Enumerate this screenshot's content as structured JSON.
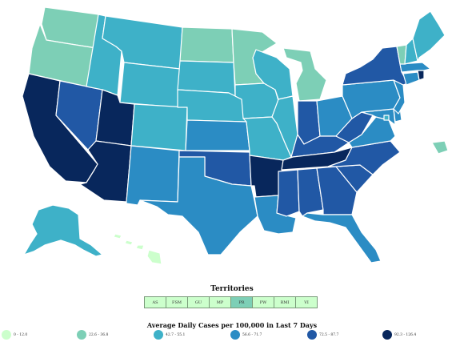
{
  "bins": [
    {
      "id": "b1",
      "label": "0 - 12.0",
      "color": "#ccffcc"
    },
    {
      "id": "b2",
      "label": "22.6 - 36.8",
      "color": "#7dcfb6"
    },
    {
      "id": "b3",
      "label": "42.7 - 55.1",
      "color": "#3eb1c8"
    },
    {
      "id": "b4",
      "label": "56.6 - 71.7",
      "color": "#2b8cc4"
    },
    {
      "id": "b5",
      "label": "72.5 - 87.7",
      "color": "#2158a5"
    },
    {
      "id": "b6",
      "label": "92.3 - 126.4",
      "color": "#08275c"
    }
  ],
  "territories": {
    "title": "Territories",
    "items": [
      {
        "code": "AS",
        "bin": "b1"
      },
      {
        "code": "FSM",
        "bin": "b1"
      },
      {
        "code": "GU",
        "bin": "b1"
      },
      {
        "code": "MP",
        "bin": "b1"
      },
      {
        "code": "PR",
        "bin": "b2"
      },
      {
        "code": "PW",
        "bin": "b1"
      },
      {
        "code": "RMI",
        "bin": "b1"
      },
      {
        "code": "VI",
        "bin": "b1"
      }
    ]
  },
  "legend": {
    "title": "Average Daily Cases per 100,000 in Last 7 Days"
  },
  "states": {
    "WA": "b2",
    "OR": "b2",
    "CA": "b6",
    "NV": "b5",
    "ID": "b3",
    "MT": "b3",
    "WY": "b3",
    "UT": "b6",
    "AZ": "b6",
    "CO": "b3",
    "NM": "b4",
    "ND": "b2",
    "SD": "b3",
    "NE": "b3",
    "KS": "b4",
    "OK": "b5",
    "TX": "b4",
    "MN": "b2",
    "IA": "b3",
    "MO": "b3",
    "AR": "b6",
    "LA": "b4",
    "WI": "b3",
    "IL": "b3",
    "MI": "b2",
    "IN": "b5",
    "OH": "b4",
    "KY": "b5",
    "TN": "b6",
    "MS": "b5",
    "AL": "b5",
    "GA": "b5",
    "FL": "b4",
    "SC": "b5",
    "NC": "b5",
    "VA": "b4",
    "WV": "b5",
    "PA": "b4",
    "NY": "b5",
    "VT": "b2",
    "NH": "b3",
    "ME": "b3",
    "MA": "b4",
    "RI": "b6",
    "CT": "b4",
    "NJ": "b4",
    "DE": "b4",
    "MD": "b4",
    "DC": "b3",
    "AK": "b3",
    "HI": "b1",
    "PR": "b2"
  }
}
